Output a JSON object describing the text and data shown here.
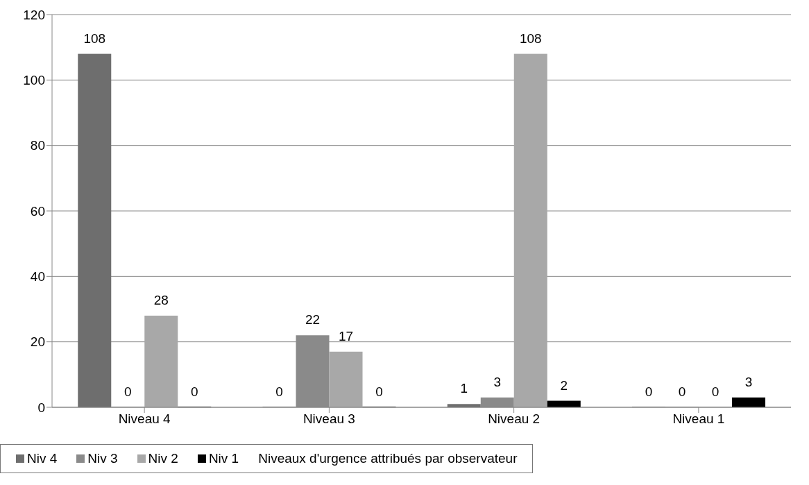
{
  "chart_data": {
    "type": "bar",
    "categories": [
      "Niveau 4",
      "Niveau 3",
      "Niveau 2",
      "Niveau 1"
    ],
    "series": [
      {
        "name": "Niv 4",
        "color": "#6e6e6e",
        "values": [
          108,
          0,
          1,
          0
        ]
      },
      {
        "name": "Niv 3",
        "color": "#8a8a8a",
        "values": [
          0,
          22,
          3,
          0
        ]
      },
      {
        "name": "Niv 2",
        "color": "#a8a8a8",
        "values": [
          28,
          17,
          108,
          0
        ]
      },
      {
        "name": "Niv 1",
        "color": "#000000",
        "values": [
          0,
          0,
          2,
          3
        ]
      }
    ],
    "legend_title": "Niveaux d'urgence attribués par observateur",
    "ylim": [
      0,
      120
    ],
    "yticks": [
      0,
      20,
      40,
      60,
      80,
      100,
      120
    ],
    "grid": "y",
    "legend": "bottom",
    "data_labels": true
  }
}
